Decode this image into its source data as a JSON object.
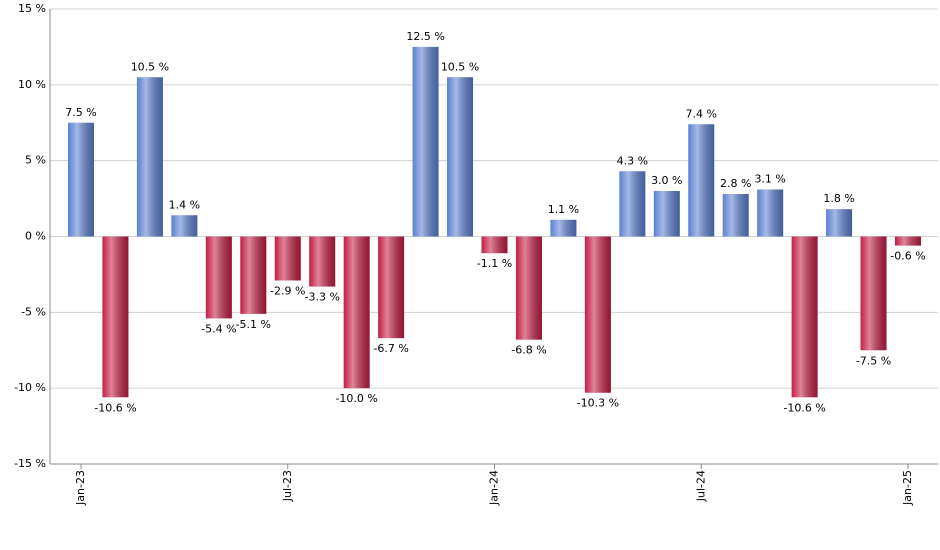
{
  "chart_data": {
    "type": "bar",
    "categories": [
      "Jan-23",
      null,
      null,
      null,
      null,
      null,
      "Jul-23",
      null,
      null,
      null,
      null,
      null,
      "Jan-24",
      null,
      null,
      null,
      null,
      null,
      "Jul-24",
      null,
      null,
      null,
      null,
      null,
      "Jan-25"
    ],
    "values": [
      7.5,
      -10.6,
      10.5,
      1.4,
      -5.4,
      -5.1,
      -2.9,
      -3.3,
      -10.0,
      -6.7,
      12.5,
      10.5,
      -1.1,
      -6.8,
      1.1,
      -10.3,
      4.3,
      3.0,
      7.4,
      2.8,
      3.1,
      -10.6,
      1.8,
      -7.5,
      -0.6
    ],
    "value_labels": [
      "7.5 %",
      "-10.6 %",
      "10.5 %",
      "1.4 %",
      "-5.4 %",
      "-5.1 %",
      "-2.9 %",
      "-3.3 %",
      "-10.0 %",
      "-6.7 %",
      "12.5 %",
      "10.5 %",
      "-1.1 %",
      "-6.8 %",
      "1.1 %",
      "-10.3 %",
      "4.3 %",
      "3.0 %",
      "7.4 %",
      "2.8 %",
      "3.1 %",
      "-10.6 %",
      "1.8 %",
      "-7.5 %",
      "-0.6 %"
    ],
    "positive_color": "#5b80d2",
    "negative_color": "#c41e46",
    "ylim": [
      -15,
      15
    ],
    "yticks": [
      {
        "value": -15,
        "label": "-15 %"
      },
      {
        "value": -10,
        "label": "-10 %"
      },
      {
        "value": -5,
        "label": "-5 %"
      },
      {
        "value": 0,
        "label": "0 %"
      },
      {
        "value": 5,
        "label": "5 %"
      },
      {
        "value": 10,
        "label": "10 %"
      },
      {
        "value": 15,
        "label": "15 %"
      }
    ],
    "grid": true
  }
}
